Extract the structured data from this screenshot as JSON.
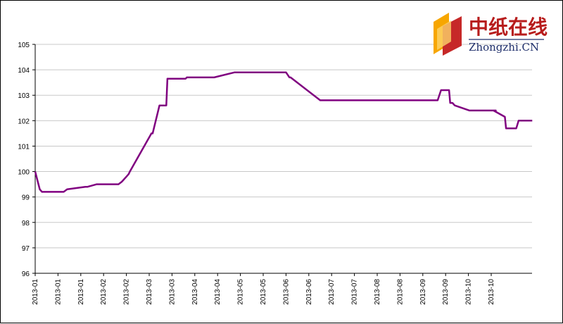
{
  "logo": {
    "text_cn": "中纸在线",
    "text_en": "Zhongzhi.CN",
    "colors": {
      "red": "#c62828",
      "orange": "#f7a600",
      "navy": "#1f2f6b"
    }
  },
  "chart_data": {
    "type": "line",
    "title": "",
    "xlabel": "",
    "ylabel": "",
    "ylim": [
      96,
      105
    ],
    "yticks": [
      96,
      97,
      98,
      99,
      100,
      101,
      102,
      103,
      104,
      105
    ],
    "grid": true,
    "x_tick_labels": [
      "2013-01",
      "2013-01",
      "2013-01",
      "2013-02",
      "2013-02",
      "2013-03",
      "2013-03",
      "2013-04",
      "2013-04",
      "2013-05",
      "2013-05",
      "2013-06",
      "2013-06",
      "2013-07",
      "2013-07",
      "2013-08",
      "2013-08",
      "2013-09",
      "2013-09",
      "2013-10",
      "2013-10"
    ],
    "line_color": "#800080",
    "series": [
      {
        "x": [
          0,
          0.2,
          0.3,
          1.25,
          1.4,
          2.2,
          2.3,
          2.7,
          3.65,
          3.8,
          4.0,
          4.1,
          4.15,
          5.1,
          5.15,
          5.45,
          5.75,
          5.8,
          6.3,
          6.4,
          6.6,
          6.65,
          7.2,
          7.25,
          7.5,
          7.55,
          7.85,
          8.75,
          8.9,
          11.0,
          11.15,
          11.2,
          12.5,
          12.55,
          12.8,
          12.95,
          12.95,
          13.3,
          13.45,
          13.75,
          13.9,
          15.0,
          17.55,
          17.65,
          17.8,
          17.95,
          18.15,
          18.2,
          18.3,
          18.4,
          19.05,
          20.1,
          20.2,
          20.1,
          20.6,
          20.65,
          21.1,
          21.2,
          21.8
        ],
        "values": [
          100.0,
          99.3,
          99.2,
          99.2,
          99.3,
          99.4,
          99.4,
          99.5,
          99.5,
          99.6,
          99.8,
          99.9,
          100.0,
          101.5,
          101.5,
          102.6,
          102.6,
          103.65,
          103.65,
          103.65,
          103.65,
          103.7,
          103.7,
          103.7,
          103.7,
          103.7,
          103.7,
          103.9,
          103.9,
          103.9,
          103.7,
          103.7,
          102.8,
          102.8,
          102.8,
          102.8,
          102.8,
          102.8,
          102.8,
          102.8,
          102.8,
          102.8,
          102.8,
          102.8,
          103.2,
          103.2,
          103.2,
          102.7,
          102.7,
          102.6,
          102.4,
          102.4,
          102.4,
          102.4,
          102.15,
          101.7,
          101.7,
          102.0,
          102.0
        ]
      }
    ]
  }
}
